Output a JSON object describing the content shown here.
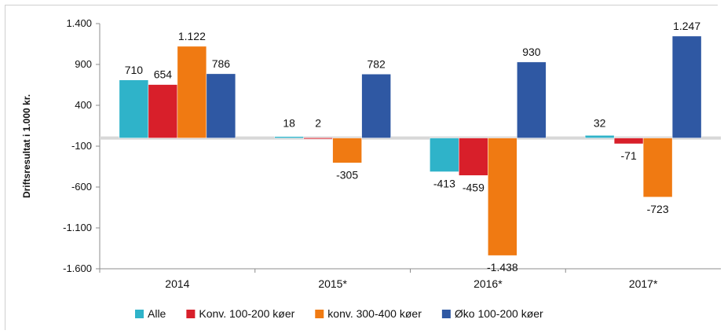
{
  "chart_data": {
    "type": "bar",
    "ylabel": "Driftsresultat i 1.000 kr.",
    "ylim": [
      -1600,
      1400
    ],
    "yticks": [
      1400,
      900,
      400,
      -100,
      -600,
      -1100,
      -1600
    ],
    "ytick_labels": [
      "1.400",
      "900",
      "400",
      "-100",
      "-600",
      "-1.100",
      "-1.600"
    ],
    "categories": [
      "2014",
      "2015*",
      "2016*",
      "2017*"
    ],
    "series": [
      {
        "name": "Alle",
        "color": "#2fb3c9",
        "values": [
          710,
          18,
          -413,
          32
        ],
        "labels": [
          "710",
          "18",
          "-413",
          "32"
        ]
      },
      {
        "name": "Konv. 100-200 køer",
        "color": "#d81f2a",
        "values": [
          654,
          2,
          -459,
          -71
        ],
        "labels": [
          "654",
          "2",
          "-459",
          "-71"
        ]
      },
      {
        "name": "konv. 300-400 køer",
        "color": "#f07a12",
        "values": [
          1122,
          -305,
          -1438,
          -723
        ],
        "labels": [
          "1.122",
          "-305",
          "-1.438",
          "-723"
        ]
      },
      {
        "name": "Øko 100-200 køer",
        "color": "#2f58a3",
        "values": [
          786,
          782,
          930,
          1247
        ],
        "labels": [
          "786",
          "782",
          "930",
          "1.247"
        ]
      }
    ],
    "legend": "bottom",
    "grid": false
  }
}
